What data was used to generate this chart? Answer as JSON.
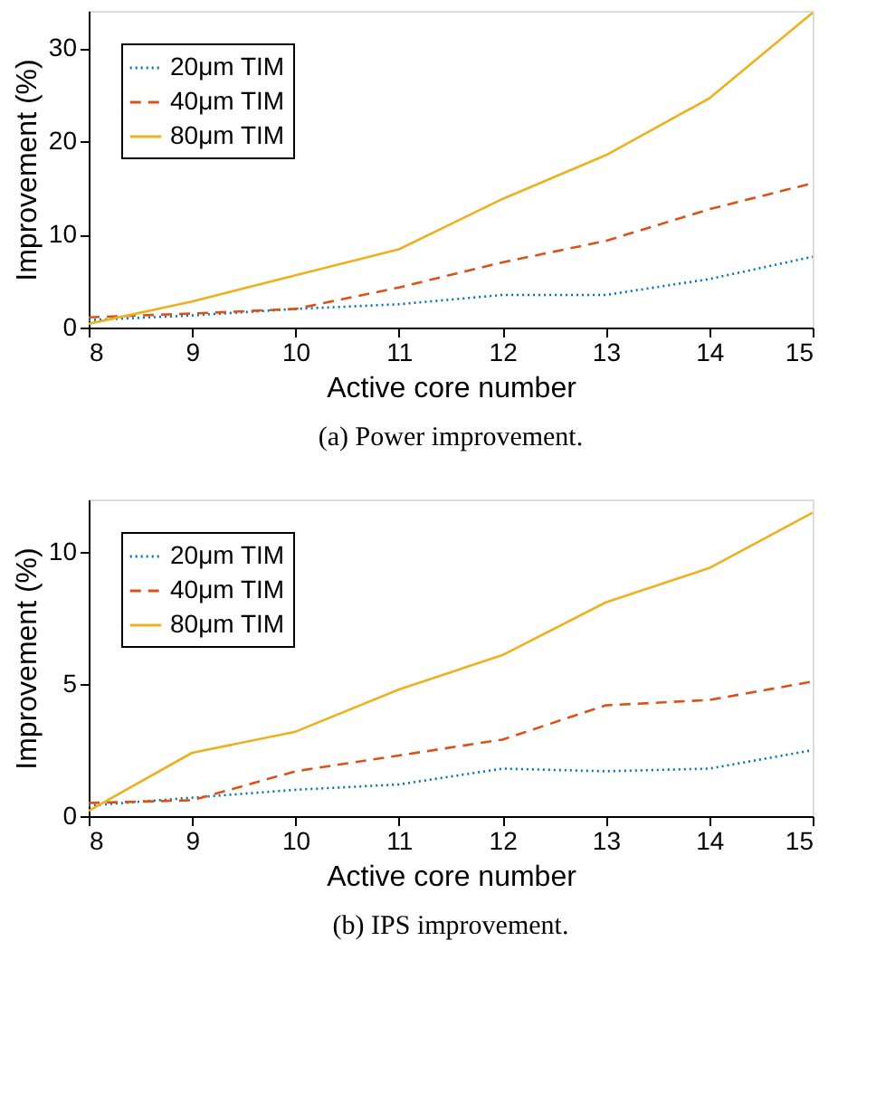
{
  "chart_data": [
    {
      "type": "line",
      "title": "(a) Power improvement.",
      "xlabel": "Active core number",
      "ylabel": "Improvement (%)",
      "x": [
        8,
        9,
        10,
        11,
        12,
        13,
        14,
        15
      ],
      "xlim": [
        8,
        15
      ],
      "xticks": [
        8,
        9,
        10,
        11,
        12,
        13,
        14,
        15
      ],
      "ylim": [
        0,
        34
      ],
      "yticks": [
        0,
        10,
        20,
        30
      ],
      "grid": false,
      "legend": "top left",
      "series": [
        {
          "name": "20μm TIM",
          "color": "#0072bd",
          "line_style": "dotted",
          "values": [
            0.8,
            1.3,
            2.0,
            2.5,
            3.5,
            3.5,
            5.2,
            7.6
          ]
        },
        {
          "name": "40μm TIM",
          "color": "#d95319",
          "line_style": "dashed",
          "values": [
            1.1,
            1.5,
            2.0,
            4.3,
            7.0,
            9.3,
            12.7,
            15.5
          ]
        },
        {
          "name": "80μm TIM",
          "color": "#edb120",
          "line_style": "solid",
          "values": [
            0.4,
            2.8,
            5.6,
            8.4,
            13.8,
            18.5,
            24.6,
            33.8
          ]
        }
      ]
    },
    {
      "type": "line",
      "title": "(b) IPS improvement.",
      "xlabel": "Active core number",
      "ylabel": "Improvement (%)",
      "x": [
        8,
        9,
        10,
        11,
        12,
        13,
        14,
        15
      ],
      "xlim": [
        8,
        15
      ],
      "xticks": [
        8,
        9,
        10,
        11,
        12,
        13,
        14,
        15
      ],
      "ylim": [
        0,
        12
      ],
      "yticks": [
        0,
        5,
        10
      ],
      "grid": false,
      "legend": "top left",
      "series": [
        {
          "name": "20μm TIM",
          "color": "#0072bd",
          "line_style": "dotted",
          "values": [
            0.4,
            0.7,
            1.0,
            1.2,
            1.8,
            1.7,
            1.8,
            2.5
          ]
        },
        {
          "name": "40μm TIM",
          "color": "#d95319",
          "line_style": "dashed",
          "values": [
            0.5,
            0.6,
            1.7,
            2.3,
            2.9,
            4.2,
            4.4,
            5.1
          ]
        },
        {
          "name": "80μm TIM",
          "color": "#edb120",
          "line_style": "solid",
          "values": [
            0.2,
            2.4,
            3.2,
            4.8,
            6.1,
            8.1,
            9.4,
            11.5
          ]
        }
      ]
    }
  ]
}
